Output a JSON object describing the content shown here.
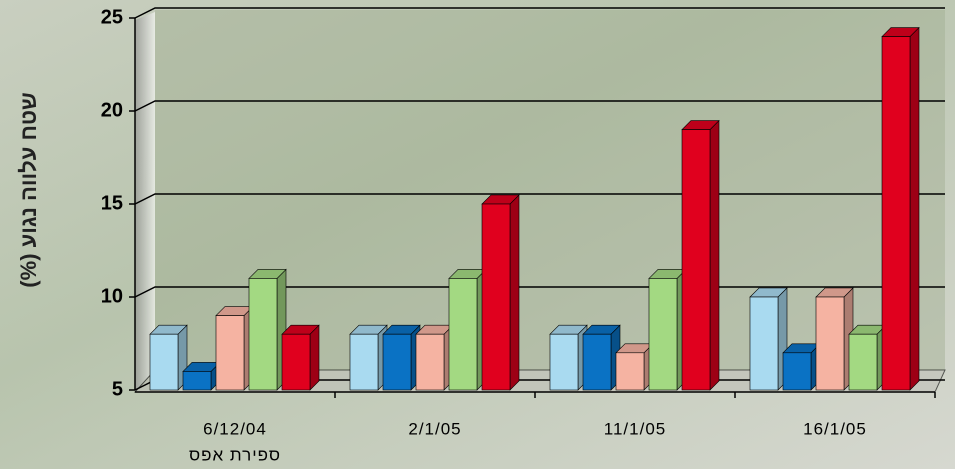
{
  "chart_data": {
    "type": "bar3d",
    "y_label": "שטח עלווה נגוע (%)",
    "categories": [
      "6/12/04",
      "2/1/05",
      "11/1/05",
      "16/1/05"
    ],
    "category_sublabels": [
      "ספירת אפס",
      null,
      null,
      null
    ],
    "series": [
      {
        "color": "#a9daf0",
        "values": [
          8,
          8,
          8,
          10
        ]
      },
      {
        "color": "#0a72c4",
        "values": [
          6,
          8,
          8,
          7
        ]
      },
      {
        "color": "#f5b3a2",
        "values": [
          9,
          8,
          7,
          10
        ]
      },
      {
        "color": "#a3d982",
        "values": [
          11,
          11,
          11,
          8
        ]
      },
      {
        "color": "#e0001e",
        "values": [
          8,
          15,
          19,
          24
        ]
      }
    ],
    "ylim": [
      5,
      25
    ],
    "yticks": [
      5,
      10,
      15,
      20,
      25
    ],
    "grid": true
  }
}
